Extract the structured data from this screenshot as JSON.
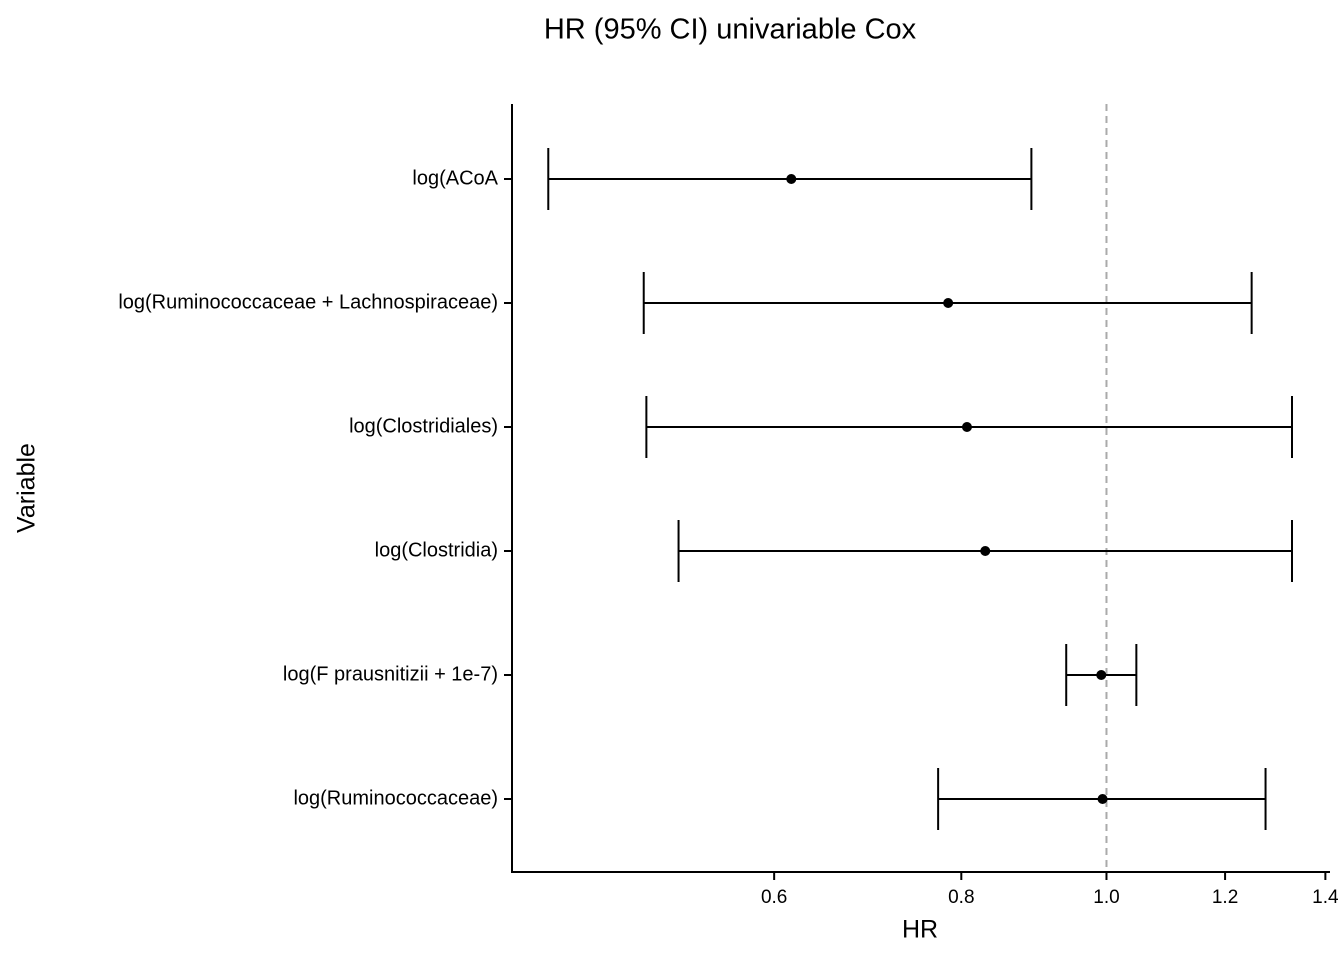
{
  "chart_data": {
    "type": "forest",
    "title": "HR (95% CI) univariable Cox",
    "x_label": "HR",
    "y_label": "Variable",
    "categories": [
      "log(ACoA",
      "log(Ruminococcaceae + Lachnospiraceae)",
      "log(Clostridiales)",
      "log(Clostridia)",
      "log(F prausnitizii + 1e-7)",
      "log(Ruminococcaceae)"
    ],
    "values": [
      0.616,
      0.784,
      0.807,
      0.83,
      0.992,
      0.994
    ],
    "lower": [
      0.424,
      0.491,
      0.493,
      0.518,
      0.94,
      0.772
    ],
    "upper": [
      0.891,
      1.25,
      1.33,
      1.33,
      1.047,
      1.277
    ],
    "color": "#000000",
    "x_log": true,
    "xlim": [
      0.401,
      1.41
    ],
    "xticks": [
      0.6,
      0.8,
      {
        "value": 1,
        "label": "1.0"
      },
      1.2,
      1.4
    ],
    "reference_line": 1,
    "reference_color": "#aaaaaa"
  }
}
